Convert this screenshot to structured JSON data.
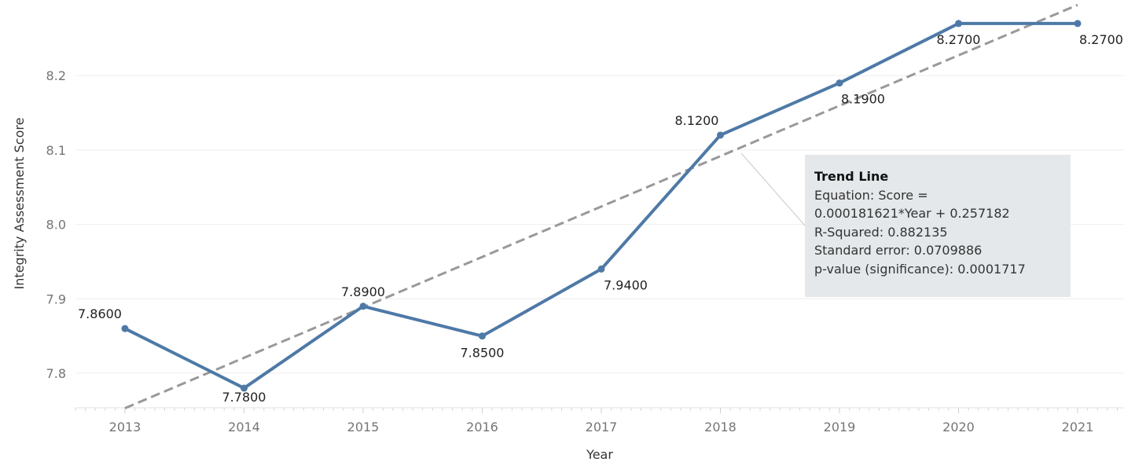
{
  "chart_data": {
    "type": "line",
    "x": [
      2013,
      2014,
      2015,
      2016,
      2017,
      2018,
      2019,
      2020,
      2021
    ],
    "categories": [
      "2013",
      "2014",
      "2015",
      "2016",
      "2017",
      "2018",
      "2019",
      "2020",
      "2021"
    ],
    "series": [
      {
        "values": [
          7.86,
          7.78,
          7.89,
          7.85,
          7.94,
          8.12,
          8.19,
          8.27,
          8.27
        ],
        "labels": [
          "7.8600",
          "7.7800",
          "7.8900",
          "7.8500",
          "7.9400",
          "8.1200",
          "8.1900",
          "8.2700",
          "8.2700"
        ],
        "color": "#4e79a7"
      }
    ],
    "trend_line": {
      "style": "dashed",
      "color": "#999999",
      "start": {
        "x": 2013,
        "y": 7.753
      },
      "end": {
        "x": 2021,
        "y": 8.295
      }
    },
    "xlabel": "Year",
    "ylabel": "Integrity Assessment Score",
    "yticks": [
      "7.8",
      "7.9",
      "8.0",
      "8.1",
      "8.2"
    ],
    "ylim": [
      7.753,
      8.298
    ],
    "xlim": [
      2012.6,
      2021.4
    ],
    "grid": true
  },
  "tooltip": {
    "title": "Trend Line",
    "lines": [
      "Equation: Score =",
      "0.000181621*Year + 0.257182",
      "R-Squared: 0.882135",
      "Standard error: 0.0709886",
      "p-value (significance): 0.0001717"
    ]
  }
}
